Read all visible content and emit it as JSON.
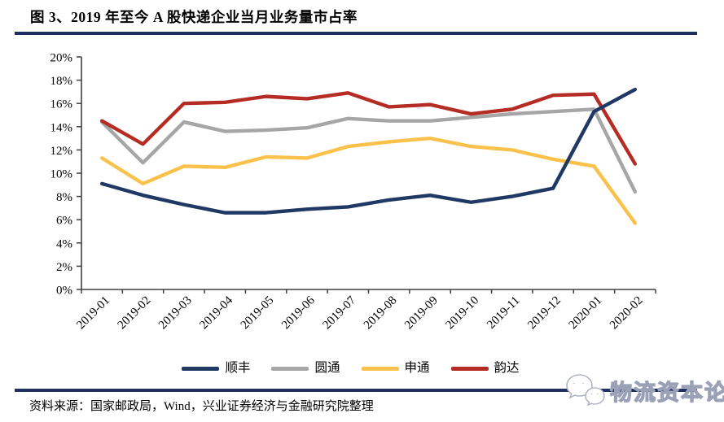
{
  "title": "图 3、2019 年至今 A 股快递企业当月业务量市占率",
  "footer": {
    "source": "资料来源：国家邮政局，Wind，兴业证券经济与金融研究院整理"
  },
  "watermark": {
    "text": "物流资本论",
    "icon": "wechat-bubbles-icon"
  },
  "colors": {
    "rule": "#1F3060",
    "axis": "#404040"
  },
  "chart_data": {
    "type": "line",
    "title": "2019年至今A股快递企业当月业务量市占率",
    "categories": [
      "2019-01",
      "2019-02",
      "2019-03",
      "2019-04",
      "2019-05",
      "2019-06",
      "2019-07",
      "2019-08",
      "2019-09",
      "2019-10",
      "2019-11",
      "2019-12",
      "2020-01",
      "2020-02"
    ],
    "series": [
      {
        "name": "顺丰",
        "color": "#1F3864",
        "values": [
          9.1,
          8.1,
          7.3,
          6.6,
          6.6,
          6.9,
          7.1,
          7.7,
          8.1,
          7.5,
          8.0,
          8.7,
          15.3,
          17.2
        ]
      },
      {
        "name": "圆通",
        "color": "#A6A6A6",
        "values": [
          14.4,
          10.9,
          14.4,
          13.6,
          13.7,
          13.9,
          14.7,
          14.5,
          14.5,
          14.8,
          15.1,
          15.3,
          15.5,
          8.4
        ]
      },
      {
        "name": "申通",
        "color": "#FAC14B",
        "values": [
          11.3,
          9.1,
          10.6,
          10.5,
          11.4,
          11.3,
          12.3,
          12.7,
          13.0,
          12.3,
          12.0,
          11.2,
          10.6,
          5.7
        ]
      },
      {
        "name": "韵达",
        "color": "#B42C24",
        "values": [
          14.5,
          12.5,
          16.0,
          16.1,
          16.6,
          16.4,
          16.9,
          15.7,
          15.9,
          15.1,
          15.5,
          16.7,
          16.8,
          10.8
        ]
      }
    ],
    "xlabel": "",
    "ylabel": "",
    "ylim": [
      0,
      20
    ],
    "y_ticks": [
      "0%",
      "2%",
      "4%",
      "6%",
      "8%",
      "10%",
      "12%",
      "14%",
      "16%",
      "18%",
      "20%"
    ],
    "grid": false,
    "legend_position": "bottom",
    "x_tick_rotation": -45,
    "draw_order": [
      "申通",
      "圆通",
      "韵达",
      "顺丰"
    ]
  }
}
